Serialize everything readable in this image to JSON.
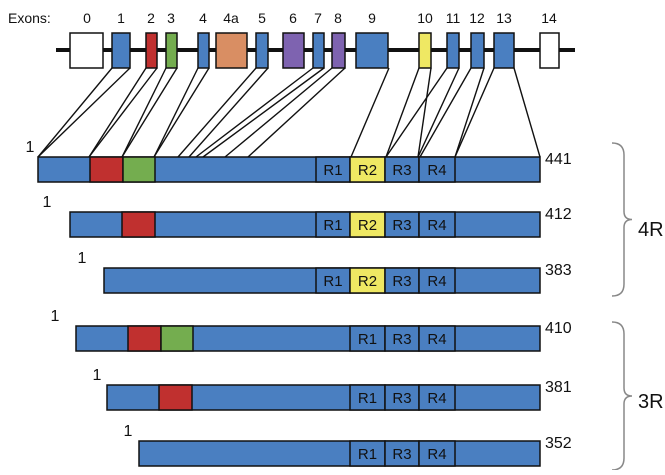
{
  "exons_label": "Exons:",
  "colors": {
    "blue": "#4a7fc1",
    "red": "#c0302f",
    "green": "#74ad4f",
    "orange": "#d98e63",
    "purple": "#7e63b0",
    "yellow": "#efe863",
    "white": "#ffffff",
    "line": "#111111",
    "bracket": "#888888"
  },
  "exons": [
    {
      "label": "0",
      "color": "white"
    },
    {
      "label": "1",
      "color": "blue"
    },
    {
      "label": "2",
      "color": "red"
    },
    {
      "label": "3",
      "color": "green"
    },
    {
      "label": "4",
      "color": "blue"
    },
    {
      "label": "4a",
      "color": "orange"
    },
    {
      "label": "5",
      "color": "blue"
    },
    {
      "label": "6",
      "color": "purple"
    },
    {
      "label": "7",
      "color": "blue"
    },
    {
      "label": "8",
      "color": "purple"
    },
    {
      "label": "9",
      "color": "blue"
    },
    {
      "label": "10",
      "color": "yellow"
    },
    {
      "label": "11",
      "color": "blue"
    },
    {
      "label": "12",
      "color": "blue"
    },
    {
      "label": "13",
      "color": "blue"
    },
    {
      "label": "14",
      "color": "white"
    }
  ],
  "isoforms": [
    {
      "start": "1",
      "end": "441",
      "inserts": [
        "red",
        "green"
      ],
      "repeats": [
        "R1",
        "R2",
        "R3",
        "R4"
      ]
    },
    {
      "start": "1",
      "end": "412",
      "inserts": [
        "red"
      ],
      "repeats": [
        "R1",
        "R2",
        "R3",
        "R4"
      ]
    },
    {
      "start": "1",
      "end": "383",
      "inserts": [],
      "repeats": [
        "R1",
        "R2",
        "R3",
        "R4"
      ]
    },
    {
      "start": "1",
      "end": "410",
      "inserts": [
        "red",
        "green"
      ],
      "repeats": [
        "R1",
        "R3",
        "R4"
      ]
    },
    {
      "start": "1",
      "end": "381",
      "inserts": [
        "red"
      ],
      "repeats": [
        "R1",
        "R3",
        "R4"
      ]
    },
    {
      "start": "1",
      "end": "352",
      "inserts": [],
      "repeats": [
        "R1",
        "R3",
        "R4"
      ]
    }
  ],
  "groups": [
    {
      "label": "4R"
    },
    {
      "label": "3R"
    }
  ]
}
